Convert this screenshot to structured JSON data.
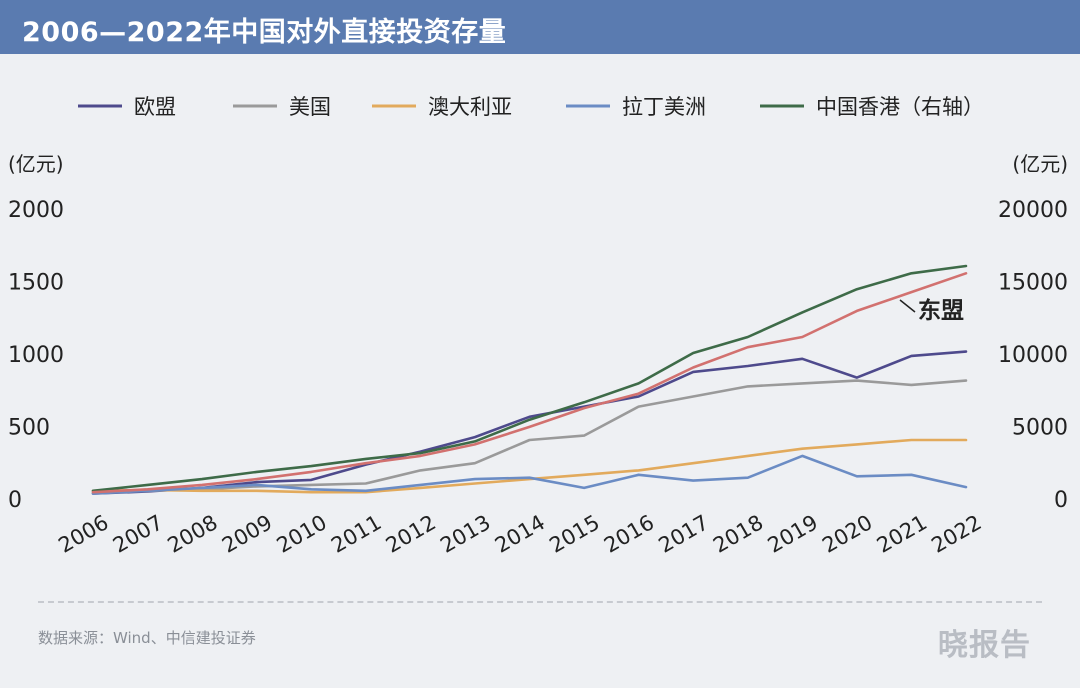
{
  "title": "2006—2022年中国对外直接投资存量",
  "source": "数据来源：Wind、中信建投证券",
  "logo_text": "晓报告",
  "chart_data": {
    "type": "line",
    "title": "2006—2022年中国对外直接投资存量",
    "left_unit": "(亿元)",
    "right_unit": "(亿元)",
    "x": [
      "2006",
      "2007",
      "2008",
      "2009",
      "2010",
      "2011",
      "2012",
      "2013",
      "2014",
      "2015",
      "2016",
      "2017",
      "2018",
      "2019",
      "2020",
      "2021",
      "2022"
    ],
    "y_left": {
      "range": [
        0,
        2000
      ],
      "ticks": [
        0,
        500,
        1000,
        1500,
        2000
      ]
    },
    "y_right": {
      "range": [
        0,
        20000
      ],
      "ticks": [
        0,
        5000,
        10000,
        15000,
        20000
      ]
    },
    "grid": false,
    "legend_position": "top",
    "series": [
      {
        "name": "欧盟",
        "color": "#4e4a8c",
        "axis": "left",
        "values": [
          30,
          45,
          70,
          110,
          125,
          230,
          320,
          420,
          560,
          630,
          700,
          870,
          910,
          960,
          830,
          980,
          1010
        ]
      },
      {
        "name": "美国",
        "color": "#9a9a9a",
        "axis": "left",
        "values": [
          40,
          50,
          60,
          80,
          90,
          100,
          190,
          240,
          400,
          430,
          630,
          700,
          770,
          790,
          810,
          780,
          810
        ]
      },
      {
        "name": "澳大利亚",
        "color": "#e2aa5c",
        "axis": "left",
        "values": [
          50,
          55,
          50,
          50,
          40,
          40,
          70,
          100,
          130,
          160,
          190,
          240,
          290,
          340,
          370,
          400,
          400
        ]
      },
      {
        "name": "拉丁美洲",
        "color": "#6b8cc4",
        "axis": "left",
        "values": [
          30,
          50,
          70,
          90,
          60,
          50,
          90,
          130,
          140,
          70,
          160,
          120,
          140,
          290,
          150,
          160,
          75
        ]
      },
      {
        "name": "中国香港（右轴）",
        "color": "#3e6b48",
        "axis": "right",
        "values": [
          500,
          900,
          1300,
          1800,
          2200,
          2700,
          3100,
          3900,
          5400,
          6600,
          7900,
          10000,
          11100,
          12800,
          14400,
          15500,
          16000
        ]
      },
      {
        "name": "东盟",
        "color": "#d2716f",
        "axis": "left",
        "in_legend": false,
        "inline_label": "东盟",
        "values": [
          40,
          60,
          90,
          130,
          180,
          240,
          290,
          370,
          490,
          620,
          720,
          900,
          1040,
          1110,
          1290,
          1420,
          1550
        ]
      }
    ]
  }
}
